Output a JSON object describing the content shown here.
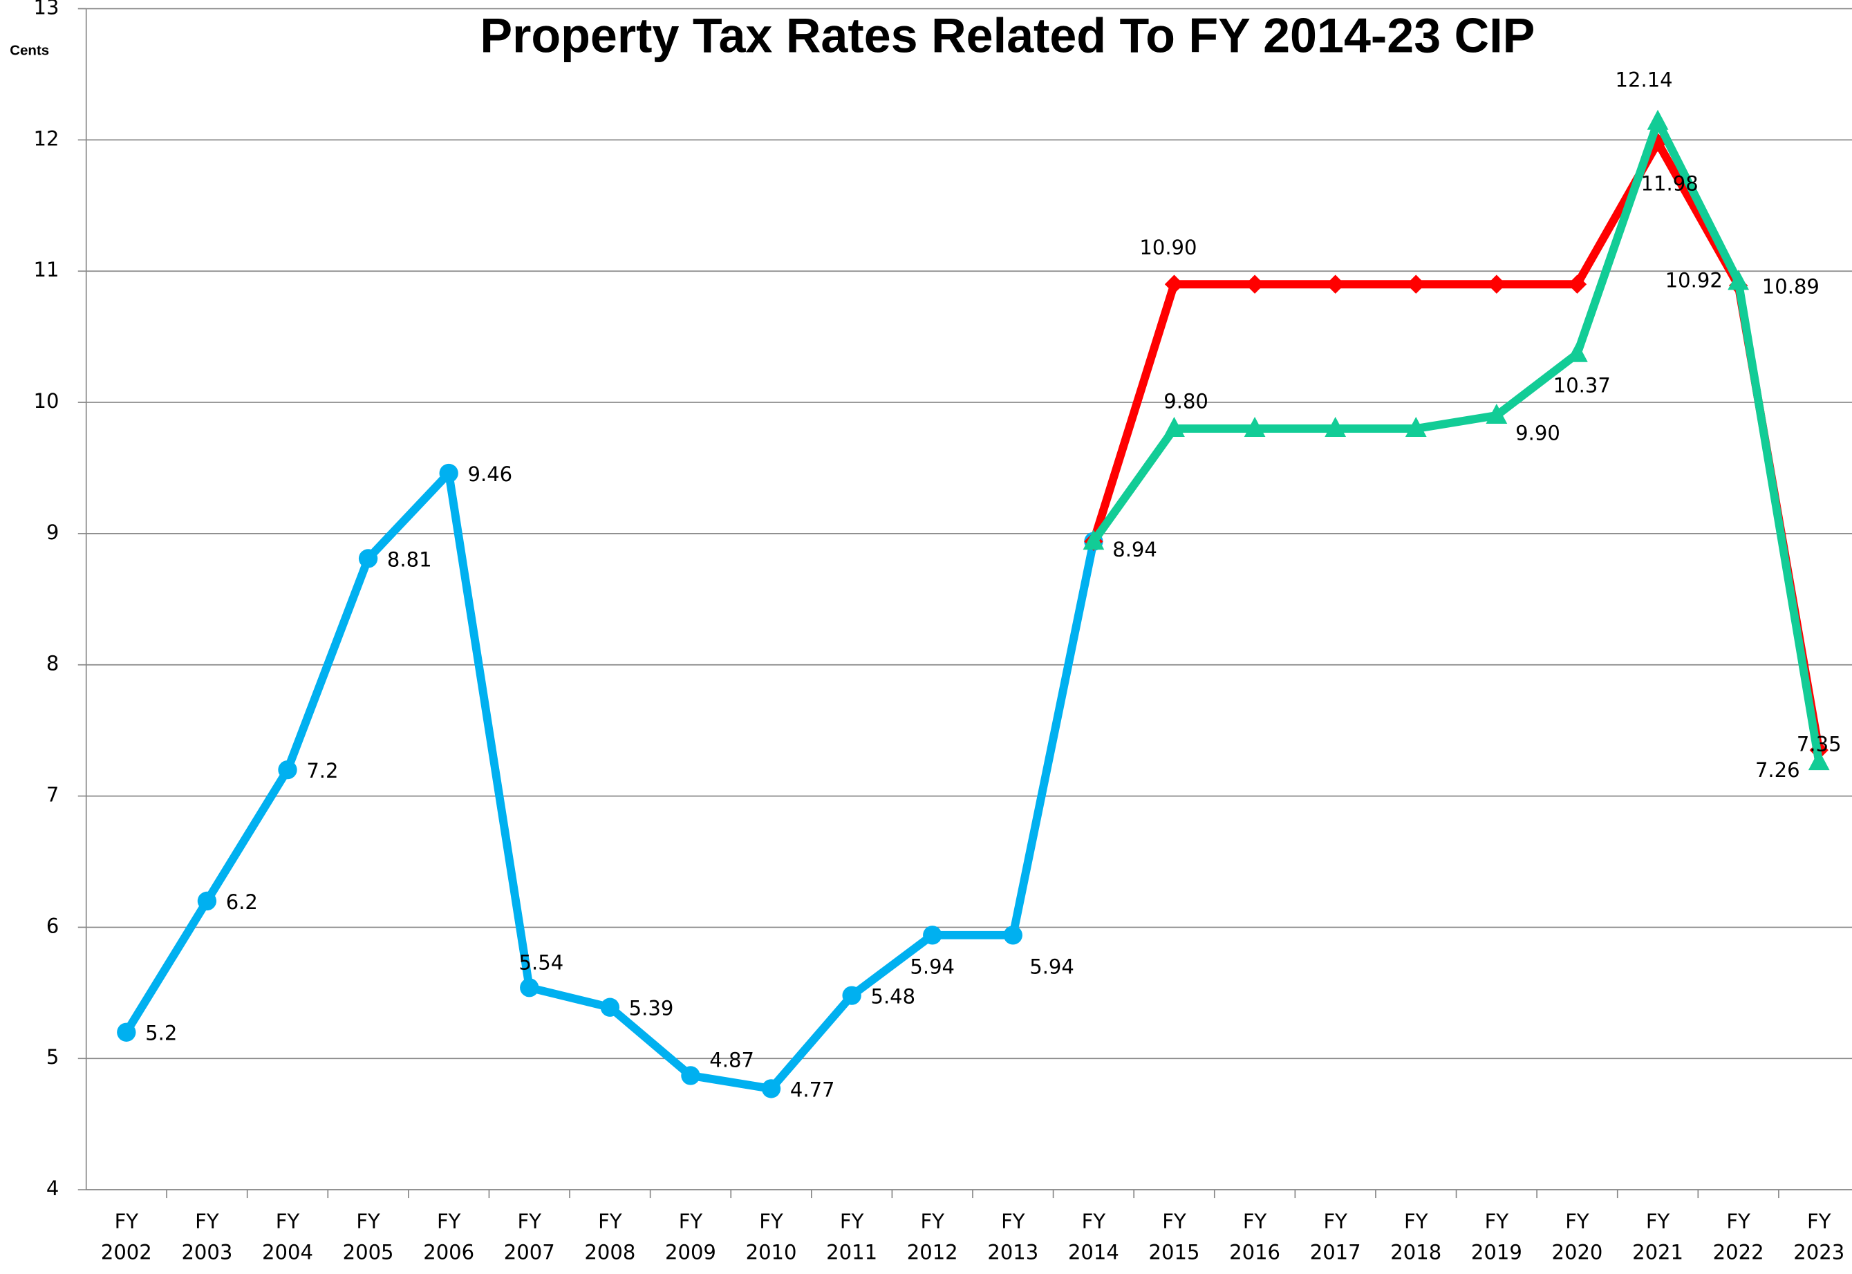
{
  "chart_data": {
    "type": "line",
    "title": "Property Tax Rates Related To FY 2014-23 CIP",
    "y_label": "Cents",
    "categories": [
      "FY 2002",
      "FY 2003",
      "FY 2004",
      "FY 2005",
      "FY 2006",
      "FY 2007",
      "FY 2008",
      "FY 2009",
      "FY 2010",
      "FY 2011",
      "FY 2012",
      "FY 2013",
      "FY 2014",
      "FY 2015",
      "FY 2016",
      "FY 2017",
      "FY 2018",
      "FY 2019",
      "FY 2020",
      "FY 2021",
      "FY 2022",
      "FY 2023"
    ],
    "series": [
      {
        "color": "#00b0f0",
        "marker": "circle",
        "values": [
          5.2,
          6.2,
          7.2,
          8.81,
          9.46,
          5.54,
          5.39,
          4.87,
          4.77,
          5.48,
          5.94,
          5.94,
          8.94,
          null,
          null,
          null,
          null,
          null,
          null,
          null,
          null,
          null
        ],
        "value_labels": [
          "5.2",
          "6.2",
          "7.2",
          "8.81",
          "9.46",
          "5.54",
          "5.39",
          "4.87",
          "4.77",
          "5.48",
          "5.94",
          "5.94",
          "8.94",
          null,
          null,
          null,
          null,
          null,
          null,
          null,
          null,
          null
        ]
      },
      {
        "color": "#ff0000",
        "marker": "diamond",
        "values": [
          null,
          null,
          null,
          null,
          null,
          null,
          null,
          null,
          null,
          null,
          null,
          null,
          8.94,
          10.9,
          10.9,
          10.9,
          10.9,
          10.9,
          10.9,
          11.98,
          10.89,
          7.35
        ],
        "value_labels": [
          null,
          null,
          null,
          null,
          null,
          null,
          null,
          null,
          null,
          null,
          null,
          null,
          null,
          "10.90",
          null,
          null,
          null,
          null,
          null,
          "11.98",
          "10.89",
          "7.35"
        ]
      },
      {
        "color": "#12cc96",
        "marker": "triangle",
        "values": [
          null,
          null,
          null,
          null,
          null,
          null,
          null,
          null,
          null,
          null,
          null,
          null,
          8.94,
          9.8,
          9.8,
          9.8,
          9.8,
          9.9,
          10.37,
          12.14,
          10.92,
          7.26
        ],
        "value_labels": [
          null,
          null,
          null,
          null,
          null,
          null,
          null,
          null,
          null,
          null,
          null,
          null,
          null,
          "9.80",
          null,
          null,
          null,
          "9.90",
          "10.37",
          "12.14",
          "10.92",
          "7.26"
        ]
      }
    ],
    "ylim": [
      4,
      13
    ],
    "yticks": [
      4,
      5,
      6,
      7,
      8,
      9,
      10,
      11,
      12,
      13
    ],
    "grid": true
  }
}
